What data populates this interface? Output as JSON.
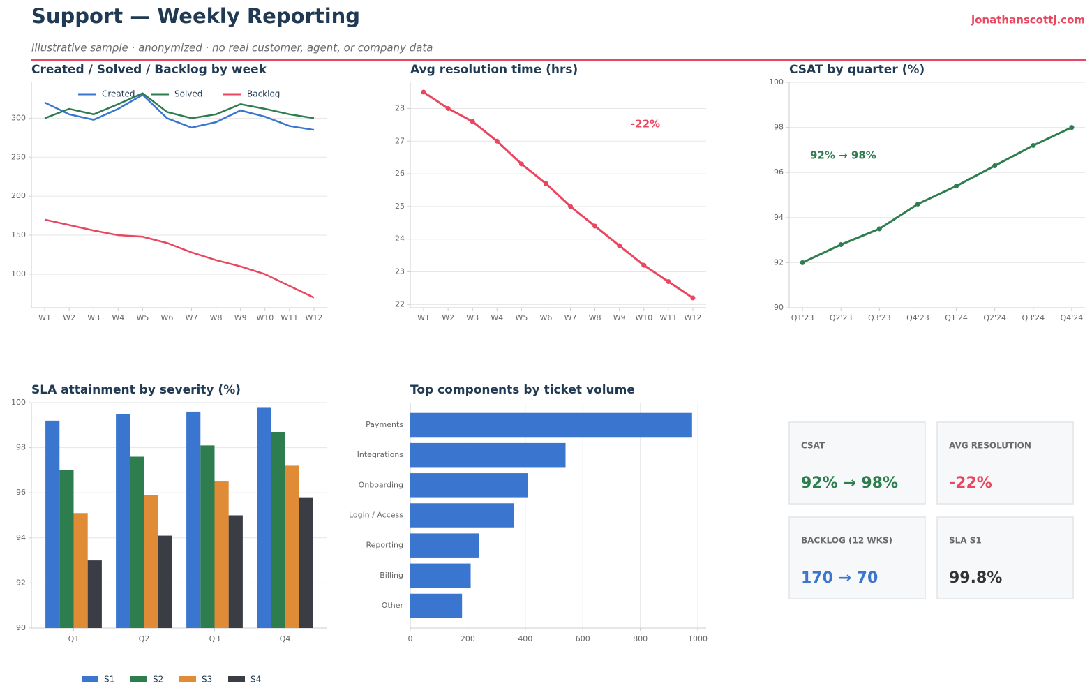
{
  "header": {
    "title": "Support — Weekly Reporting",
    "subtitle": "Illustrative sample · anonymized · no real customer, agent, or company data",
    "brand": "jonathanscottj.com"
  },
  "chart_data": [
    {
      "type": "line",
      "title": "Created / Solved / Backlog by week",
      "categories": [
        "W1",
        "W2",
        "W3",
        "W4",
        "W5",
        "W6",
        "W7",
        "W8",
        "W9",
        "W10",
        "W11",
        "W12"
      ],
      "series": [
        {
          "name": "Created",
          "color": "#3a76d0",
          "values": [
            320,
            305,
            298,
            312,
            330,
            300,
            288,
            295,
            310,
            302,
            290,
            285
          ]
        },
        {
          "name": "Solved",
          "color": "#2e7d4f",
          "values": [
            300,
            312,
            305,
            318,
            332,
            308,
            300,
            305,
            318,
            312,
            305,
            300
          ]
        },
        {
          "name": "Backlog",
          "color": "#e8475f",
          "values": [
            170,
            163,
            156,
            150,
            148,
            140,
            128,
            118,
            110,
            100,
            85,
            70
          ]
        }
      ],
      "ylim": [
        57,
        346
      ],
      "yticks": [
        100,
        150,
        200,
        250,
        300
      ],
      "grid": true,
      "legend": "upper center",
      "markers": false
    },
    {
      "type": "line",
      "title": "Avg resolution time (hrs)",
      "categories": [
        "W1",
        "W2",
        "W3",
        "W4",
        "W5",
        "W6",
        "W7",
        "W8",
        "W9",
        "W10",
        "W11",
        "W12"
      ],
      "values": [
        28.5,
        28.0,
        27.6,
        27.0,
        26.3,
        25.7,
        25.0,
        24.4,
        23.8,
        23.2,
        22.7,
        22.2
      ],
      "color": "#e8475f",
      "ylim": [
        21.9,
        28.8
      ],
      "yticks": [
        22,
        23,
        24,
        25,
        26,
        27,
        28
      ],
      "grid": true,
      "markers": true,
      "annotation": "-22%"
    },
    {
      "type": "line",
      "title": "CSAT by quarter (%)",
      "categories": [
        "Q1'23",
        "Q2'23",
        "Q3'23",
        "Q4'23",
        "Q1'24",
        "Q2'24",
        "Q3'24",
        "Q4'24"
      ],
      "values": [
        92.0,
        92.8,
        93.5,
        94.6,
        95.4,
        96.3,
        97.2,
        98.0
      ],
      "color": "#2e7d4f",
      "ylim": [
        90,
        100
      ],
      "yticks": [
        90,
        92,
        94,
        96,
        98,
        100
      ],
      "grid": true,
      "markers": true,
      "annotation": "92% → 98%"
    },
    {
      "type": "bar",
      "title": "SLA attainment by severity (%)",
      "categories": [
        "Q1",
        "Q2",
        "Q3",
        "Q4"
      ],
      "series": [
        {
          "name": "S1",
          "color": "#3a76d0",
          "values": [
            99.2,
            99.5,
            99.6,
            99.8
          ]
        },
        {
          "name": "S2",
          "color": "#2e7d4f",
          "values": [
            97.0,
            97.6,
            98.1,
            98.7
          ]
        },
        {
          "name": "S3",
          "color": "#e08b35",
          "values": [
            95.1,
            95.9,
            96.5,
            97.2
          ]
        },
        {
          "name": "S4",
          "color": "#3b3d45",
          "values": [
            93.0,
            94.1,
            95.0,
            95.8
          ]
        }
      ],
      "ylim": [
        90,
        100
      ],
      "yticks": [
        90,
        92,
        94,
        96,
        98,
        100
      ],
      "grid": true,
      "legend": "lower center"
    },
    {
      "type": "barh",
      "title": "Top components by ticket volume",
      "categories": [
        "Payments",
        "Integrations",
        "Onboarding",
        "Login / Access",
        "Reporting",
        "Billing",
        "Other"
      ],
      "values": [
        980,
        540,
        410,
        360,
        240,
        210,
        180
      ],
      "color": "#3a76d0",
      "xlim": [
        0,
        1029
      ],
      "xticks": [
        0,
        200,
        400,
        600,
        800,
        1000
      ],
      "grid": true
    }
  ],
  "kpis": [
    {
      "label": "CSAT",
      "value": "92% → 98%",
      "color": "#2e7d4f"
    },
    {
      "label": "AVG RESOLUTION",
      "value": "-22%",
      "color": "#e8475f"
    },
    {
      "label": "BACKLOG (12 WKS)",
      "value": "170 → 70",
      "color": "#3a76d0"
    },
    {
      "label": "SLA S1",
      "value": "99.8%",
      "color": "#333333"
    }
  ]
}
